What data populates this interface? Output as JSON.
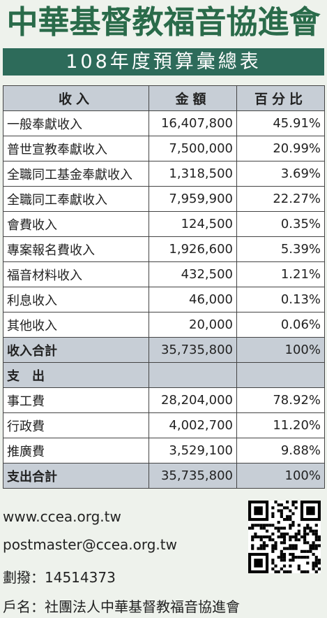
{
  "title": "中華基督教福音協進會",
  "subtitle": "108年度預算彙總表",
  "table": {
    "headers": [
      "收入",
      "金額",
      "百分比"
    ],
    "income_rows": [
      {
        "name": "一般奉獻收入",
        "amount": "16,407,800",
        "percent": "45.91%"
      },
      {
        "name": "普世宣教奉獻收入",
        "amount": "7,500,000",
        "percent": "20.99%"
      },
      {
        "name": "全職同工基金奉獻收入",
        "amount": "1,318,500",
        "percent": "3.69%"
      },
      {
        "name": "全職同工奉獻收入",
        "amount": "7,959,900",
        "percent": "22.27%"
      },
      {
        "name": "會費收入",
        "amount": "124,500",
        "percent": "0.35%"
      },
      {
        "name": "專案報名費收入",
        "amount": "1,926,600",
        "percent": "5.39%"
      },
      {
        "name": "福音材料收入",
        "amount": "432,500",
        "percent": "1.21%"
      },
      {
        "name": "利息收入",
        "amount": "46,000",
        "percent": "0.13%"
      },
      {
        "name": "其他收入",
        "amount": "20,000",
        "percent": "0.06%"
      }
    ],
    "income_total": {
      "name": "收入合計",
      "amount": "35,735,800",
      "percent": "100%"
    },
    "expense_header": "支出",
    "expense_rows": [
      {
        "name": "事工費",
        "amount": "28,204,000",
        "percent": "78.92%"
      },
      {
        "name": "行政費",
        "amount": "4,002,700",
        "percent": "11.20%"
      },
      {
        "name": "推廣費",
        "amount": "3,529,100",
        "percent": "9.88%"
      }
    ],
    "expense_total": {
      "name": "支出合計",
      "amount": "35,735,800",
      "percent": "100%"
    }
  },
  "contact": {
    "website": "www.ccea.org.tw",
    "email": "postmaster@ccea.org.tw",
    "transfer": "劃撥：14514373",
    "account_name": "戶名：社團法人中華基督教福音協進會"
  },
  "qr_code_icon": "qr-code-icon"
}
